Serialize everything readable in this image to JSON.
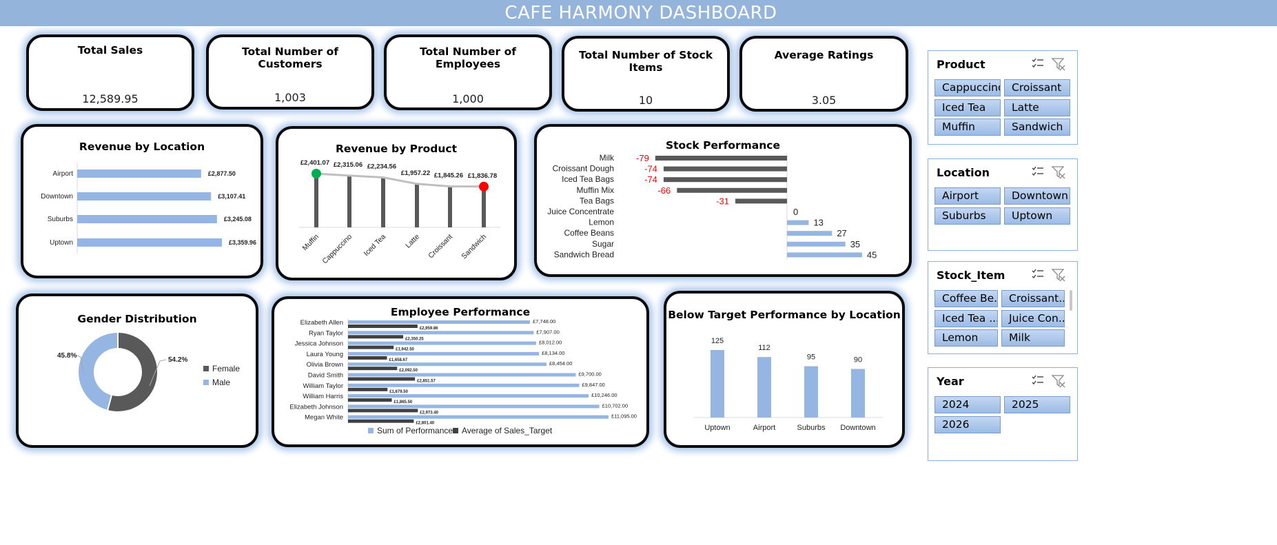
{
  "dashboard": {
    "title": "CAFE HARMONY DASHBOARD"
  },
  "kpis": [
    {
      "title": "Total Sales",
      "value": "12,589.95"
    },
    {
      "title": "Total Number of Customers",
      "value": "1,003"
    },
    {
      "title": "Total Number of Employees",
      "value": "1,000"
    },
    {
      "title": "Total Number of Stock Items",
      "value": "10"
    },
    {
      "title": "Average Ratings",
      "value": "3.05"
    }
  ],
  "charts": {
    "revenue_location": {
      "title": "Revenue by Location"
    },
    "revenue_product": {
      "title": "Revenue by Product"
    },
    "stock": {
      "title": "Stock Performance"
    },
    "gender": {
      "title": "Gender Distribution"
    },
    "employee": {
      "title": "Employee Performance"
    },
    "below_target": {
      "title": "Below Target Performance by Location"
    }
  },
  "chart_data": [
    {
      "id": "revenue_location",
      "type": "bar",
      "orientation": "horizontal",
      "title": "Revenue by Location",
      "categories": [
        "Airport",
        "Downtown",
        "Suburbs",
        "Uptown"
      ],
      "values": [
        2877.5,
        3107.41,
        3245.08,
        3359.96
      ],
      "labels": [
        "£2,877.50",
        "£3,107.41",
        "£3,245.08",
        "£3,359.96"
      ],
      "color": "#95b6e3"
    },
    {
      "id": "revenue_product",
      "type": "line",
      "title": "Revenue by Product",
      "categories": [
        "Muffin",
        "Cappuccino",
        "Iced Tea",
        "Latte",
        "Croissant",
        "Sandwich"
      ],
      "values": [
        2401.07,
        2315.06,
        2234.56,
        1957.22,
        1845.26,
        1836.78
      ],
      "labels": [
        "£2,401.07",
        "£2,315.06",
        "£2,234.56",
        "£1,957.22",
        "£1,845.26",
        "£1,836.78"
      ],
      "line_color": "#bfbfbf",
      "stem_color": "#595959",
      "max_marker_color": "#00b050",
      "min_marker_color": "#ff0000"
    },
    {
      "id": "stock",
      "type": "bar",
      "orientation": "horizontal",
      "title": "Stock Performance",
      "categories": [
        "Milk",
        "Croissant Dough",
        "Iced Tea Bags",
        "Muffin Mix",
        "Tea Bags",
        "Juice Concentrate",
        "Lemon",
        "Coffee Beans",
        "Sugar",
        "Sandwich Bread"
      ],
      "values": [
        -79,
        -74,
        -74,
        -66,
        -31,
        0,
        13,
        27,
        35,
        45
      ],
      "negative_color": "#595959",
      "positive_color": "#95b6e3",
      "negative_label_color": "#ff0000"
    },
    {
      "id": "gender",
      "type": "pie",
      "title": "Gender Distribution",
      "labels": [
        "Female",
        "Male"
      ],
      "values": [
        54.2,
        45.8
      ],
      "value_labels": [
        "54.2%",
        "45.8%"
      ],
      "colors": [
        "#595959",
        "#95b6e3"
      ],
      "legend": "right"
    },
    {
      "id": "employee",
      "type": "bar",
      "orientation": "horizontal",
      "title": "Employee Performance",
      "categories": [
        "Elizabeth Allen",
        "Ryan Taylor",
        "Jessica Johnson",
        "Laura Young",
        "Olivia Brown",
        "David Smith",
        "William Taylor",
        "William Harris",
        "Elizabeth Johnson",
        "Megan White"
      ],
      "series": [
        {
          "name": "Sum of Performance",
          "values": [
            7748.0,
            7907.0,
            8012.0,
            8134.0,
            8454.0,
            9700.0,
            9847.0,
            10246.0,
            10702.0,
            11095.0
          ],
          "labels": [
            "£7,748.00",
            "£7,907.00",
            "£8,012.00",
            "£8,134.00",
            "£8,454.00",
            "£9,700.00",
            "£9,847.00",
            "£10,246.00",
            "£10,702.00",
            "£11,095.00"
          ],
          "color": "#95b6e3"
        },
        {
          "name": "Average of Sales_Target",
          "values": [
            2959.86,
            2350.25,
            1942.5,
            1658.67,
            2092.5,
            2851.57,
            1679.5,
            1865.5,
            2973.4,
            2801.4
          ],
          "labels": [
            "£2,959.86",
            "£2,350.25",
            "£1,942.50",
            "£1,658.67",
            "£2,092.50",
            "£2,851.57",
            "£1,679.50",
            "£1,865.50",
            "£2,973.40",
            "£2,801.40"
          ],
          "color": "#404040"
        }
      ],
      "legend": "bottom"
    },
    {
      "id": "below_target",
      "type": "bar",
      "title": "Below Target Performance by Location",
      "categories": [
        "Uptown",
        "Airport",
        "Suburbs",
        "Downtown"
      ],
      "values": [
        125,
        112,
        95,
        90
      ],
      "color": "#95b6e3"
    }
  ],
  "slicers": [
    {
      "title": "Product",
      "items": [
        "Cappuccino",
        "Croissant",
        "Iced Tea",
        "Latte",
        "Muffin",
        "Sandwich"
      ]
    },
    {
      "title": "Location",
      "items": [
        "Airport",
        "Downtown",
        "Suburbs",
        "Uptown"
      ]
    },
    {
      "title": "Stock_Item",
      "items": [
        "Coffee Be...",
        "Croissant...",
        "Iced Tea ...",
        "Juice Con...",
        "Lemon",
        "Milk"
      ]
    },
    {
      "title": "Year",
      "items": [
        "2024",
        "2025",
        "2026"
      ]
    }
  ]
}
